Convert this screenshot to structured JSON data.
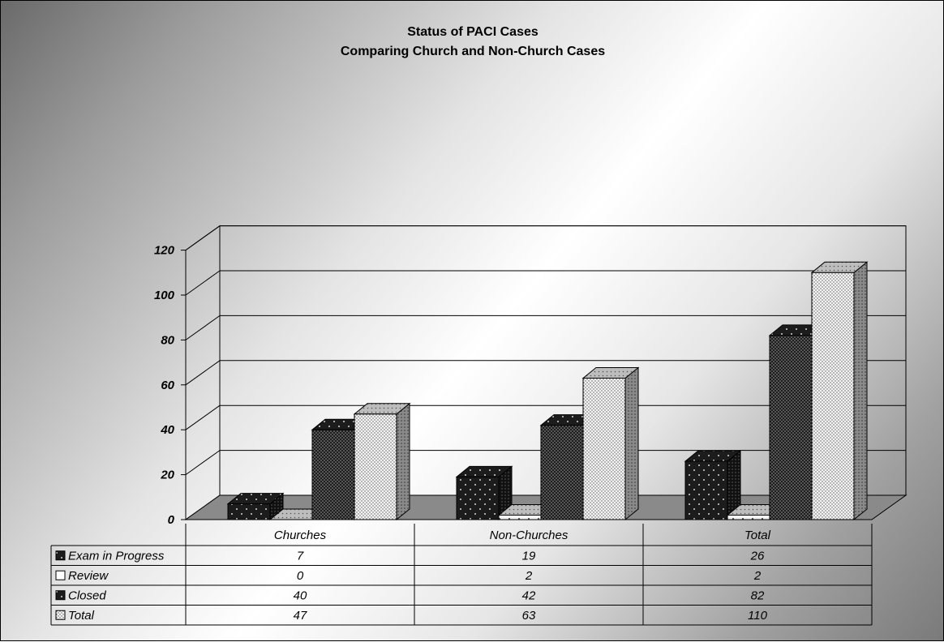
{
  "chart_data": {
    "type": "bar",
    "title": "Status of PACI Cases",
    "subtitle": "Comparing Church and Non-Church Cases",
    "categories": [
      "Churches",
      "Non-Churches",
      "Total"
    ],
    "series": [
      {
        "name": "Exam in Progress",
        "values": [
          7,
          19,
          26
        ],
        "pattern": "dark-dots"
      },
      {
        "name": "Review",
        "values": [
          0,
          2,
          2
        ],
        "pattern": "light-dots"
      },
      {
        "name": "Closed",
        "values": [
          40,
          42,
          82
        ],
        "pattern": "dark-dense"
      },
      {
        "name": "Total",
        "values": [
          47,
          63,
          110
        ],
        "pattern": "light-dense"
      }
    ],
    "yticks": [
      "0",
      "20",
      "40",
      "60",
      "80",
      "100",
      "120"
    ],
    "ylim": [
      0,
      120
    ],
    "grid": true,
    "three_d": true,
    "legend": "data-table-below",
    "table_values": [
      [
        "7",
        "19",
        "26"
      ],
      [
        "0",
        "2",
        "2"
      ],
      [
        "40",
        "42",
        "82"
      ],
      [
        "47",
        "63",
        "110"
      ]
    ],
    "colors": {
      "floor": "#8a8a8a",
      "dark_bar": "#1c1c1c",
      "light_bar": "#f4f4f4",
      "dot_light": "#d8d8d8",
      "dot_dark": "#333333"
    }
  }
}
